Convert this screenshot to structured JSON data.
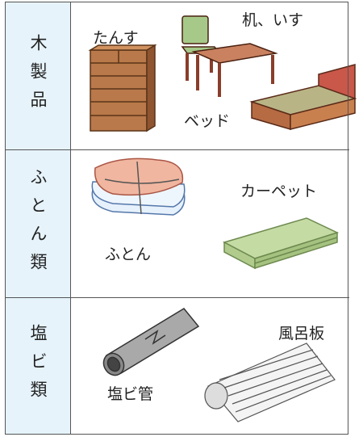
{
  "rows": [
    {
      "category": "木製品",
      "items": [
        "たんす",
        "机、いす",
        "ベッド"
      ]
    },
    {
      "category": "ふとん類",
      "items": [
        "カーペット",
        "ふとん"
      ]
    },
    {
      "category": "塩ビ類",
      "items": [
        "風呂板",
        "塩ビ管"
      ]
    }
  ]
}
